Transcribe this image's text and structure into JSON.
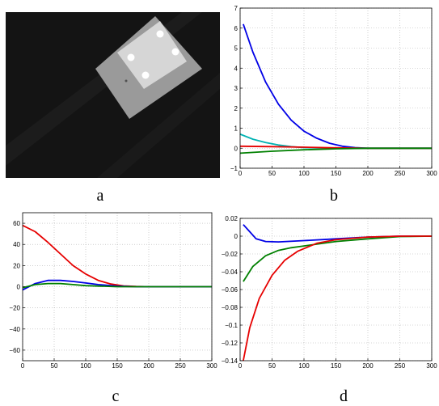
{
  "photo": {
    "label": "a"
  },
  "chart_data": [
    {
      "type": "line",
      "panel_label": "b",
      "xlim": [
        0,
        300
      ],
      "ylim": [
        -1,
        7
      ],
      "xticks": [
        "0",
        "50",
        "100",
        "150",
        "200",
        "250",
        "300"
      ],
      "yticks": [
        "−1",
        "0",
        "1",
        "2",
        "3",
        "4",
        "5",
        "6",
        "7"
      ],
      "grid": true,
      "series": [
        {
          "color": "#0000e6",
          "x": [
            5,
            20,
            40,
            60,
            80,
            100,
            120,
            140,
            160,
            180,
            200,
            250,
            300
          ],
          "y": [
            6.2,
            4.8,
            3.3,
            2.2,
            1.4,
            0.85,
            0.5,
            0.25,
            0.1,
            0.03,
            0.0,
            0.0,
            0.0
          ]
        },
        {
          "color": "#00b3b3",
          "x": [
            0,
            20,
            40,
            60,
            80,
            100,
            150,
            200,
            300
          ],
          "y": [
            0.7,
            0.45,
            0.28,
            0.16,
            0.08,
            0.03,
            0.0,
            0.0,
            0.0
          ]
        },
        {
          "color": "#e60000",
          "x": [
            0,
            50,
            100,
            150,
            200,
            300
          ],
          "y": [
            0.1,
            0.08,
            0.05,
            0.02,
            0.0,
            0.0
          ]
        },
        {
          "color": "#008000",
          "x": [
            0,
            50,
            100,
            150,
            200,
            300
          ],
          "y": [
            -0.25,
            -0.15,
            -0.08,
            -0.03,
            0.0,
            0.0
          ]
        }
      ]
    },
    {
      "type": "line",
      "panel_label": "c",
      "xlim": [
        0,
        300
      ],
      "ylim": [
        -70,
        70
      ],
      "xticks": [
        "0",
        "50",
        "100",
        "150",
        "200",
        "250",
        "300"
      ],
      "yticks": [
        "−60",
        "−40",
        "−20",
        "0",
        "20",
        "40",
        "60"
      ],
      "grid": true,
      "series": [
        {
          "color": "#e60000",
          "x": [
            0,
            20,
            40,
            60,
            80,
            100,
            120,
            140,
            160,
            180,
            200,
            250,
            300
          ],
          "y": [
            58,
            52,
            42,
            31,
            20,
            12,
            6,
            2.5,
            0.8,
            0.2,
            0,
            0,
            0
          ]
        },
        {
          "color": "#0000e6",
          "x": [
            0,
            20,
            40,
            60,
            80,
            100,
            120,
            150,
            180,
            200,
            300
          ],
          "y": [
            -3,
            3,
            6,
            6,
            5,
            3.5,
            2,
            0.5,
            0,
            0,
            0
          ]
        },
        {
          "color": "#008000",
          "x": [
            0,
            20,
            40,
            60,
            80,
            100,
            150,
            200,
            300
          ],
          "y": [
            -1,
            2,
            3,
            3,
            2,
            1,
            0,
            0,
            0
          ]
        }
      ]
    },
    {
      "type": "line",
      "panel_label": "d",
      "xlim": [
        0,
        300
      ],
      "ylim": [
        -0.14,
        0.02
      ],
      "xticks": [
        "0",
        "50",
        "100",
        "150",
        "200",
        "250",
        "300"
      ],
      "yticks": [
        "0.02",
        "0",
        "−0.02",
        "−0.04",
        "−0.06",
        "−0.08",
        "−0.1",
        "−0.12",
        "−0.14"
      ],
      "grid": true,
      "series": [
        {
          "color": "#0000e6",
          "x": [
            5,
            15,
            25,
            40,
            60,
            100,
            150,
            200,
            250,
            300
          ],
          "y": [
            0.013,
            0.005,
            -0.003,
            -0.006,
            -0.0065,
            -0.005,
            -0.003,
            -0.001,
            0,
            0
          ]
        },
        {
          "color": "#008000",
          "x": [
            5,
            20,
            40,
            60,
            80,
            100,
            150,
            200,
            250,
            300
          ],
          "y": [
            -0.051,
            -0.034,
            -0.022,
            -0.016,
            -0.013,
            -0.011,
            -0.006,
            -0.003,
            -0.0005,
            0
          ]
        },
        {
          "color": "#e60000",
          "x": [
            5,
            15,
            30,
            50,
            70,
            90,
            120,
            150,
            200,
            250,
            300
          ],
          "y": [
            -0.14,
            -0.103,
            -0.07,
            -0.044,
            -0.027,
            -0.017,
            -0.008,
            -0.004,
            -0.001,
            0,
            0
          ]
        }
      ]
    }
  ]
}
